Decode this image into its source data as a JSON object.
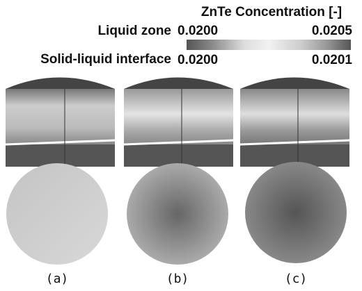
{
  "legend": {
    "title": "ZnTe Concentration [-]",
    "rows": [
      {
        "label": "Liquid zone",
        "min": "0.0200",
        "max": "0.0205"
      },
      {
        "label": "Solid-liquid interface",
        "min": "0.0200",
        "max": "0.0201"
      }
    ]
  },
  "panels": [
    "(a)",
    "(b)",
    "(c)"
  ]
}
